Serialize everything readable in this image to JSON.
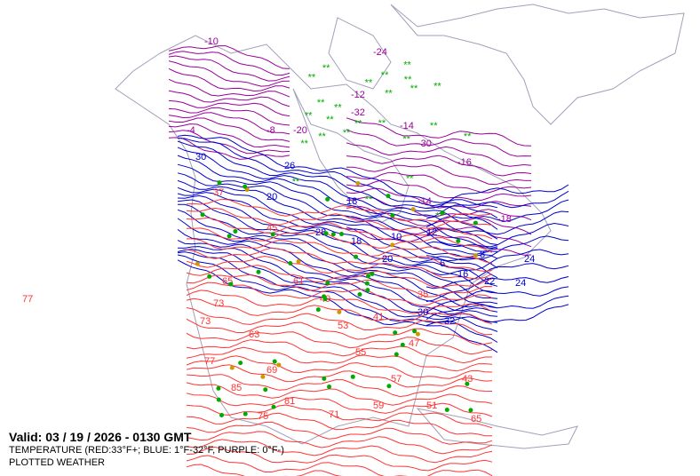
{
  "caption": {
    "valid": "Valid: 03 / 19 / 2026  -  0130 GMT",
    "legend": "TEMPERATURE (RED:33°F+; BLUE: 1°F-32°F, PURPLE: 0°F-)",
    "layer": "PLOTTED WEATHER"
  },
  "colors": {
    "warm": "#ff3333",
    "cool": "#0000cc",
    "cold": "#990099",
    "coast": "#a0a0b8",
    "weather_green": "#00aa00",
    "weather_yellow": "#cc9900"
  },
  "contour_labels": {
    "red": [
      "37",
      "45",
      "61",
      "53",
      "57",
      "65",
      "49",
      "41",
      "73",
      "77",
      "69",
      "81",
      "63",
      "55",
      "47",
      "35",
      "43",
      "51",
      "59",
      "75",
      "65",
      "71",
      "85",
      "73",
      "77"
    ],
    "blue": [
      "30",
      "20",
      "18",
      "10",
      "12",
      "26",
      "28",
      "24",
      "22",
      "16",
      "8",
      "6",
      "32",
      "18",
      "20",
      "24",
      "30"
    ],
    "purple": [
      "-10",
      "-24",
      "-14",
      "-16",
      "-12",
      "-32",
      "-30",
      "-14",
      "-8",
      "-20",
      "-4",
      "-18"
    ]
  }
}
